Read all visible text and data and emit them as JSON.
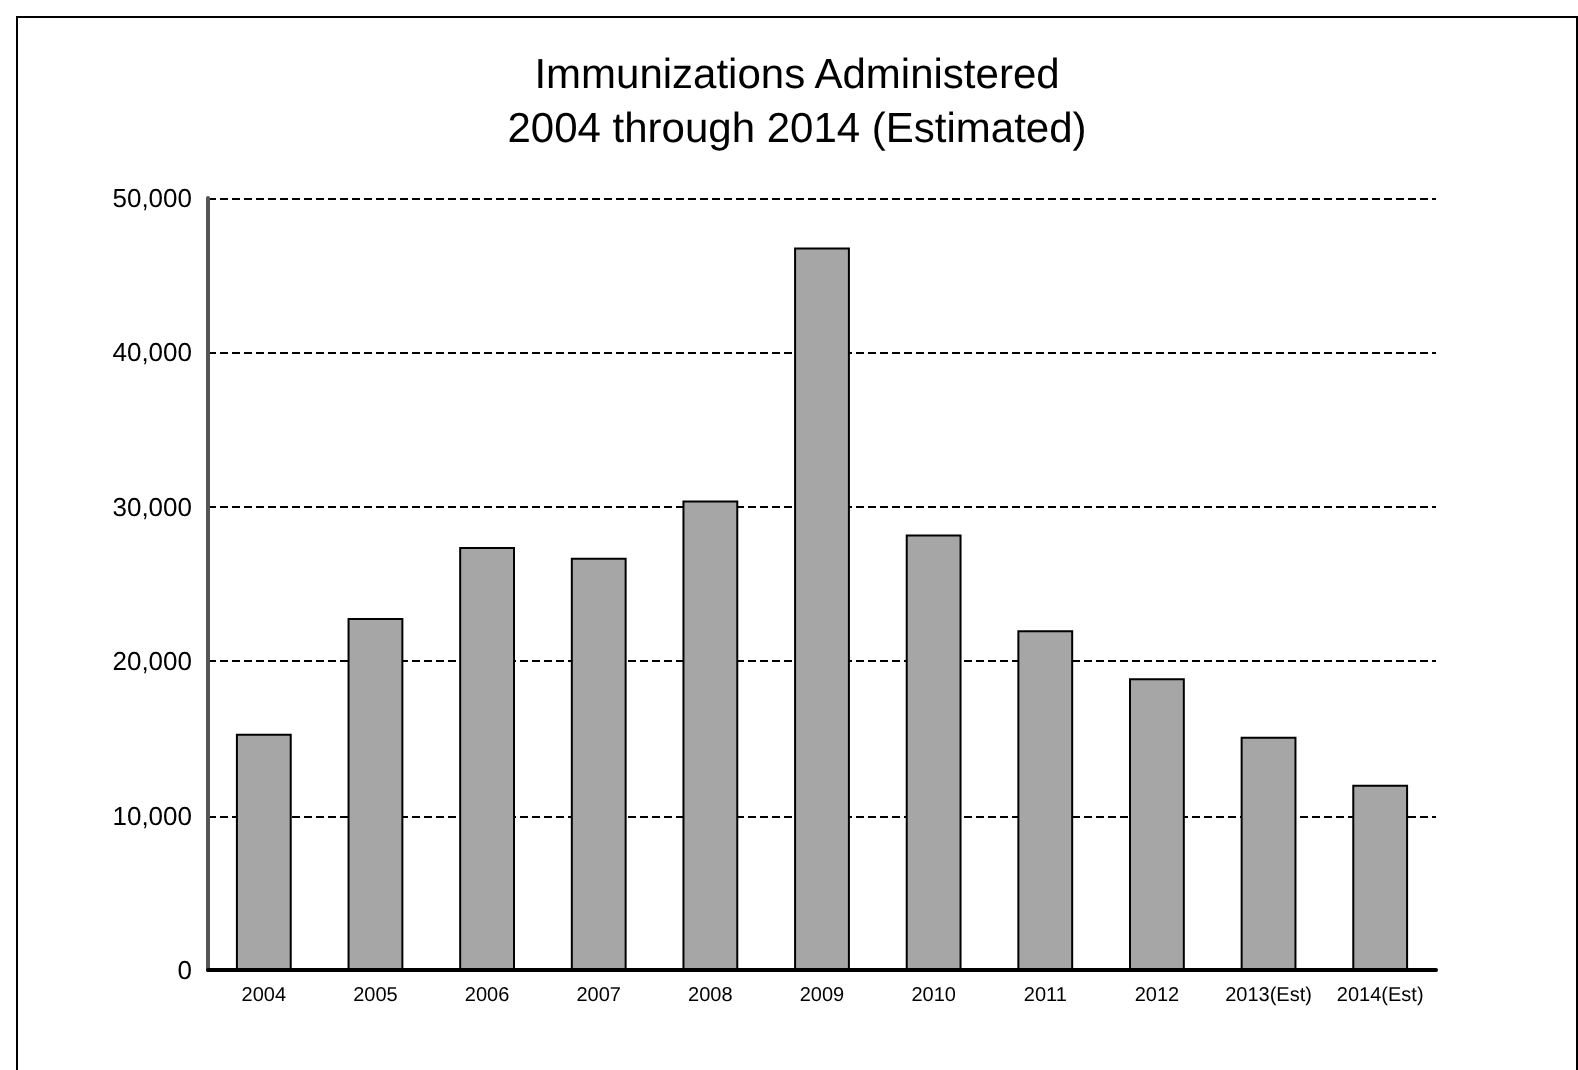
{
  "chart_data": {
    "type": "bar",
    "title": "Immunizations Administered\n2004 through 2014 (Estimated)",
    "categories": [
      "2004",
      "2005",
      "2006",
      "2007",
      "2008",
      "2009",
      "2010",
      "2011",
      "2012",
      "2013(Est)",
      "2014(Est)"
    ],
    "values": [
      15300,
      22800,
      27400,
      26700,
      30400,
      46800,
      28200,
      22000,
      18900,
      15100,
      12000
    ],
    "color": "#a6a6a6",
    "ylim": [
      0,
      50000
    ],
    "yticks": [
      0,
      {
        "value": 10000,
        "label": "10,000"
      },
      {
        "value": 20000,
        "label": "20,000"
      },
      {
        "value": 30000,
        "label": "30,000"
      },
      {
        "value": 40000,
        "label": "40,000"
      },
      {
        "value": 50000,
        "label": "50,000"
      }
    ],
    "grid": "y"
  }
}
